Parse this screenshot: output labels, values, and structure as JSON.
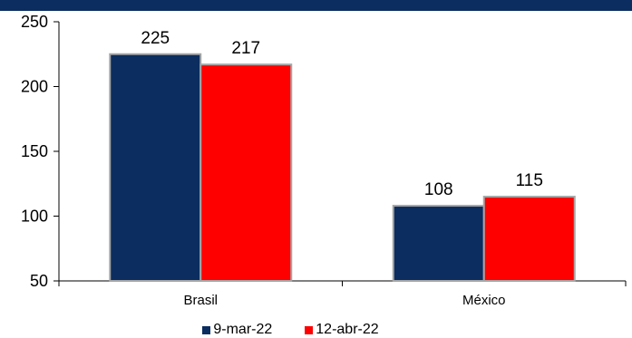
{
  "chart_data": {
    "type": "bar",
    "title": "",
    "xlabel": "",
    "ylabel": "",
    "categories": [
      "Brasil",
      "México"
    ],
    "series": [
      {
        "name": "9-mar-22",
        "values": [
          225,
          108
        ],
        "color": "#0b2d5f"
      },
      {
        "name": "12-abr-22",
        "values": [
          217,
          115
        ],
        "color": "#ff0000"
      }
    ],
    "ylim": [
      50,
      250
    ],
    "yticks": [
      50,
      100,
      150,
      200,
      250
    ],
    "grid": false,
    "legend_position": "bottom",
    "data_labels": true
  }
}
